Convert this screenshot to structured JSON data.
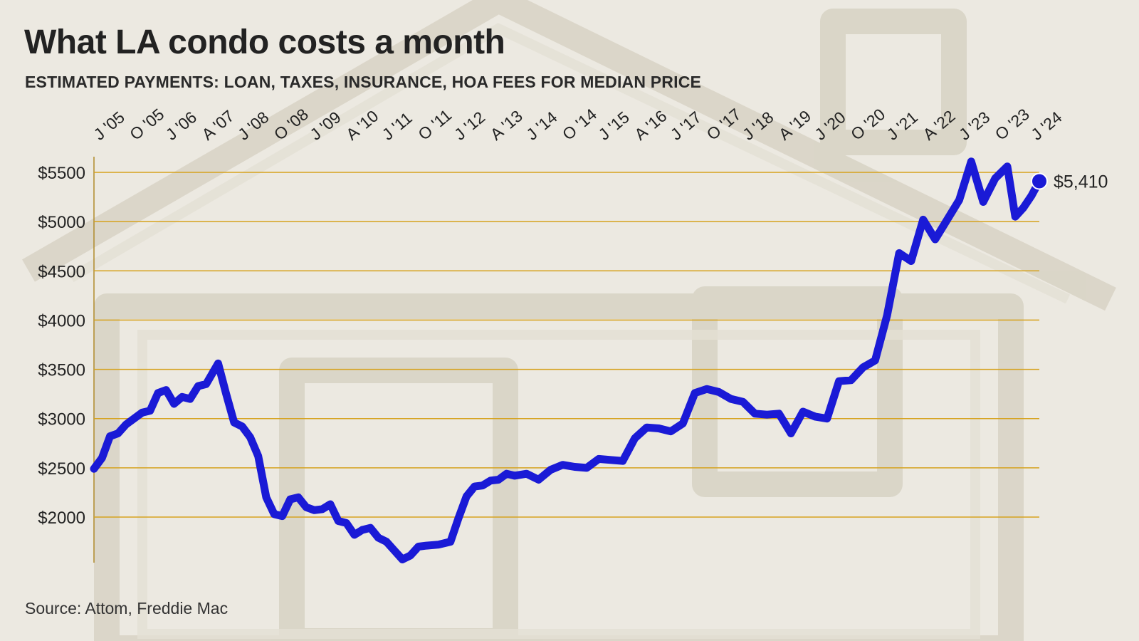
{
  "title": "What LA condo costs a month",
  "subtitle": "ESTIMATED PAYMENTS: LOAN, TAXES, INSURANCE, HOA FEES FOR MEDIAN PRICE",
  "source": "Source: Attom, Freddie Mac",
  "colors": {
    "line": "#1a1ad6",
    "grid": "#d6a21e",
    "background": "#ece9e1"
  },
  "chart_data": {
    "type": "line",
    "title": "What LA condo costs a month",
    "subtitle": "ESTIMATED PAYMENTS: LOAN, TAXES, INSURANCE, HOA FEES FOR MEDIAN PRICE",
    "ylim": [
      1500,
      5750
    ],
    "grid": true,
    "yticks": [
      2000,
      2500,
      3000,
      3500,
      4000,
      4500,
      5000,
      5500
    ],
    "ytick_labels": [
      "$2000",
      "$2500",
      "$3000",
      "$3500",
      "$4000",
      "$4500",
      "$5000",
      "$5500"
    ],
    "xticks": [
      {
        "label": "J '05",
        "x": "2005-01"
      },
      {
        "label": "O '05",
        "x": "2005-10"
      },
      {
        "label": "J '06",
        "x": "2006-07"
      },
      {
        "label": "A '07",
        "x": "2007-04"
      },
      {
        "label": "J '08",
        "x": "2008-01"
      },
      {
        "label": "O '08",
        "x": "2008-10"
      },
      {
        "label": "J '09",
        "x": "2009-07"
      },
      {
        "label": "A '10",
        "x": "2010-04"
      },
      {
        "label": "J '11",
        "x": "2011-01"
      },
      {
        "label": "O '11",
        "x": "2011-10"
      },
      {
        "label": "J '12",
        "x": "2012-07"
      },
      {
        "label": "A '13",
        "x": "2013-04"
      },
      {
        "label": "J '14",
        "x": "2014-01"
      },
      {
        "label": "O '14",
        "x": "2014-10"
      },
      {
        "label": "J '15",
        "x": "2015-07"
      },
      {
        "label": "A '16",
        "x": "2016-04"
      },
      {
        "label": "J '17",
        "x": "2017-01"
      },
      {
        "label": "O '17",
        "x": "2017-10"
      },
      {
        "label": "J '18",
        "x": "2018-07"
      },
      {
        "label": "A '19",
        "x": "2019-04"
      },
      {
        "label": "J '20",
        "x": "2020-01"
      },
      {
        "label": "O '20",
        "x": "2020-10"
      },
      {
        "label": "J '21",
        "x": "2021-07"
      },
      {
        "label": "A '22",
        "x": "2022-04"
      },
      {
        "label": "J '23",
        "x": "2023-01"
      },
      {
        "label": "O '23",
        "x": "2023-10"
      },
      {
        "label": "J '24",
        "x": "2024-07"
      }
    ],
    "end_label": "$5,410",
    "series": [
      {
        "points": [
          [
            "2005-01",
            2490
          ],
          [
            "2005-03",
            2600
          ],
          [
            "2005-05",
            2820
          ],
          [
            "2005-07",
            2850
          ],
          [
            "2005-09",
            2940
          ],
          [
            "2005-11",
            3000
          ],
          [
            "2006-01",
            3060
          ],
          [
            "2006-03",
            3080
          ],
          [
            "2006-05",
            3260
          ],
          [
            "2006-07",
            3290
          ],
          [
            "2006-09",
            3150
          ],
          [
            "2006-11",
            3220
          ],
          [
            "2007-01",
            3200
          ],
          [
            "2007-03",
            3330
          ],
          [
            "2007-05",
            3350
          ],
          [
            "2007-08",
            3560
          ],
          [
            "2007-10",
            3250
          ],
          [
            "2007-12",
            2960
          ],
          [
            "2008-02",
            2920
          ],
          [
            "2008-04",
            2810
          ],
          [
            "2008-06",
            2620
          ],
          [
            "2008-08",
            2200
          ],
          [
            "2008-10",
            2030
          ],
          [
            "2008-12",
            2010
          ],
          [
            "2009-02",
            2180
          ],
          [
            "2009-04",
            2200
          ],
          [
            "2009-06",
            2100
          ],
          [
            "2009-08",
            2070
          ],
          [
            "2009-10",
            2080
          ],
          [
            "2009-12",
            2130
          ],
          [
            "2010-02",
            1960
          ],
          [
            "2010-04",
            1940
          ],
          [
            "2010-06",
            1820
          ],
          [
            "2010-08",
            1870
          ],
          [
            "2010-10",
            1890
          ],
          [
            "2010-12",
            1790
          ],
          [
            "2011-02",
            1750
          ],
          [
            "2011-04",
            1660
          ],
          [
            "2011-06",
            1570
          ],
          [
            "2011-08",
            1610
          ],
          [
            "2011-10",
            1700
          ],
          [
            "2011-12",
            1710
          ],
          [
            "2012-03",
            1720
          ],
          [
            "2012-06",
            1750
          ],
          [
            "2012-08",
            1990
          ],
          [
            "2012-10",
            2210
          ],
          [
            "2012-12",
            2310
          ],
          [
            "2013-02",
            2320
          ],
          [
            "2013-04",
            2370
          ],
          [
            "2013-06",
            2380
          ],
          [
            "2013-08",
            2440
          ],
          [
            "2013-10",
            2420
          ],
          [
            "2014-01",
            2440
          ],
          [
            "2014-04",
            2380
          ],
          [
            "2014-07",
            2480
          ],
          [
            "2014-10",
            2530
          ],
          [
            "2015-01",
            2510
          ],
          [
            "2015-04",
            2500
          ],
          [
            "2015-07",
            2590
          ],
          [
            "2015-10",
            2580
          ],
          [
            "2016-01",
            2570
          ],
          [
            "2016-04",
            2800
          ],
          [
            "2016-07",
            2910
          ],
          [
            "2016-10",
            2900
          ],
          [
            "2017-01",
            2870
          ],
          [
            "2017-04",
            2950
          ],
          [
            "2017-07",
            3260
          ],
          [
            "2017-10",
            3300
          ],
          [
            "2018-01",
            3270
          ],
          [
            "2018-04",
            3200
          ],
          [
            "2018-07",
            3170
          ],
          [
            "2018-10",
            3050
          ],
          [
            "2019-01",
            3040
          ],
          [
            "2019-04",
            3050
          ],
          [
            "2019-07",
            2850
          ],
          [
            "2019-10",
            3070
          ],
          [
            "2020-01",
            3020
          ],
          [
            "2020-04",
            3000
          ],
          [
            "2020-07",
            3380
          ],
          [
            "2020-10",
            3390
          ],
          [
            "2021-01",
            3520
          ],
          [
            "2021-04",
            3590
          ],
          [
            "2021-07",
            4050
          ],
          [
            "2021-10",
            4680
          ],
          [
            "2022-01",
            4600
          ],
          [
            "2022-04",
            5020
          ],
          [
            "2022-07",
            4820
          ],
          [
            "2022-10",
            5020
          ],
          [
            "2023-01",
            5220
          ],
          [
            "2023-04",
            5610
          ],
          [
            "2023-07",
            5200
          ],
          [
            "2023-10",
            5440
          ],
          [
            "2024-01",
            5560
          ],
          [
            "2024-03",
            5050
          ],
          [
            "2024-05",
            5140
          ],
          [
            "2024-07",
            5260
          ],
          [
            "2024-09",
            5410
          ]
        ]
      }
    ]
  }
}
